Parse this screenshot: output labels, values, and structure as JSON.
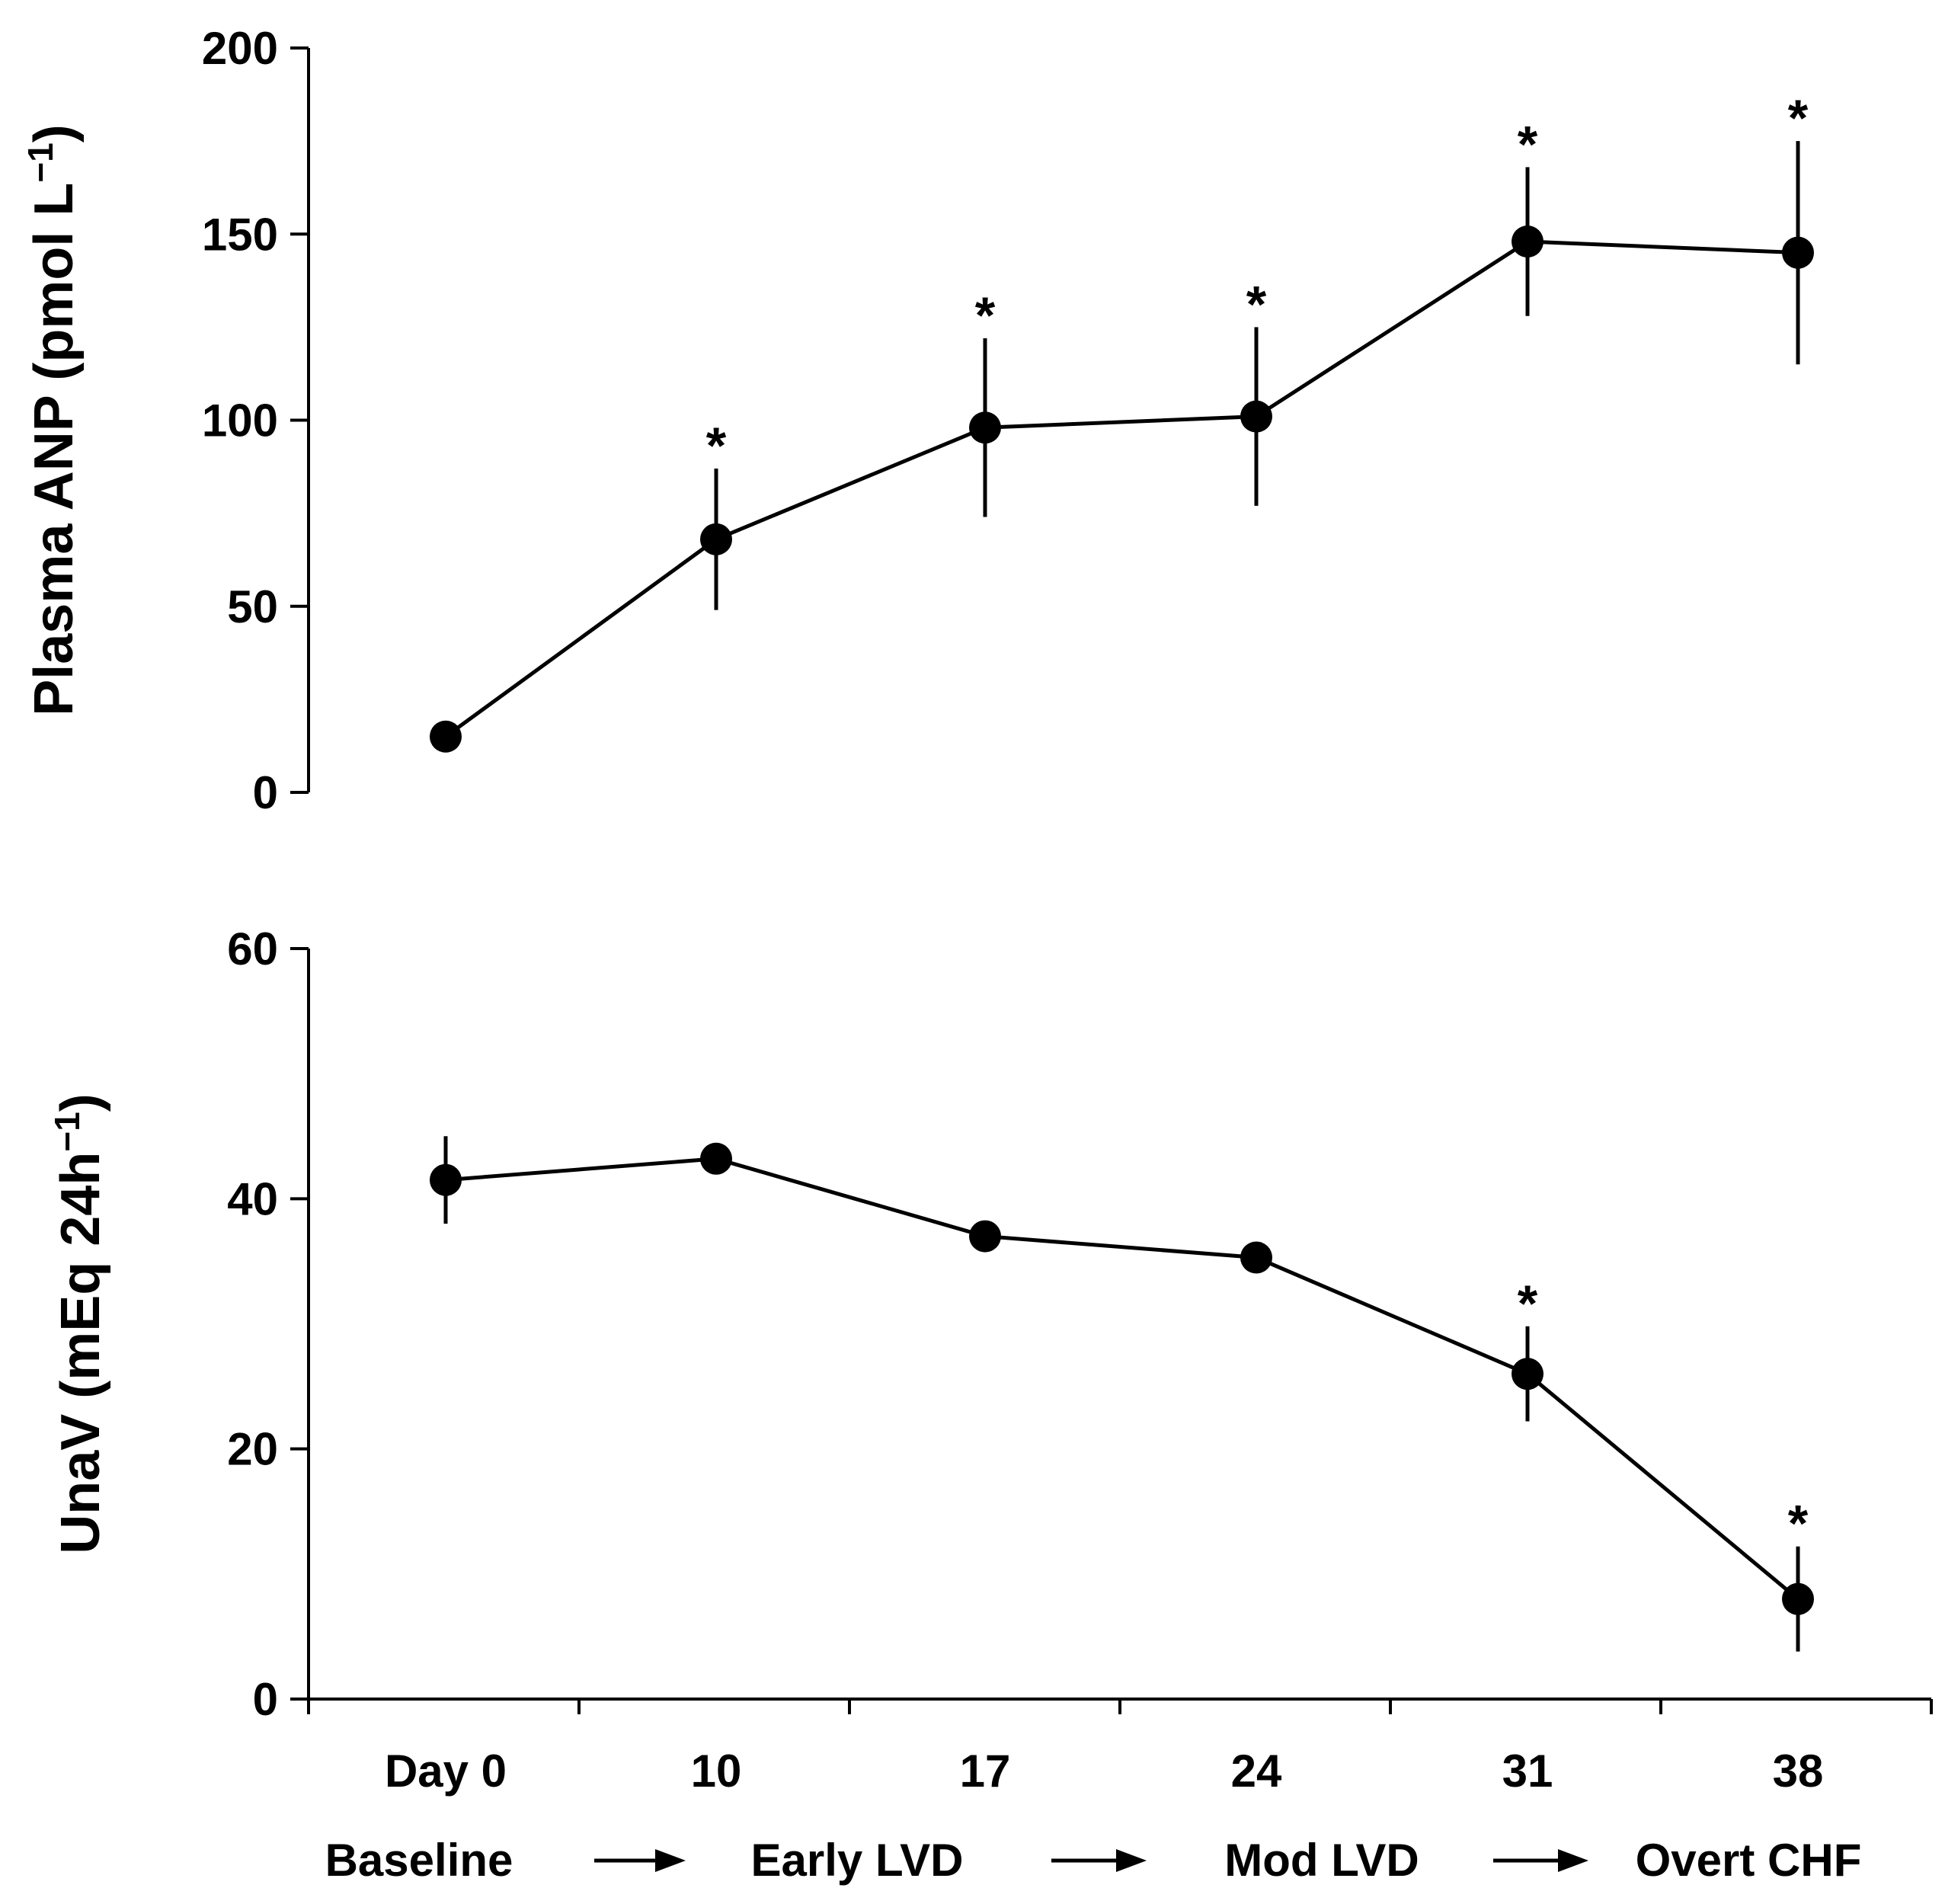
{
  "colors": {
    "ink": "#000000",
    "background": "#ffffff"
  },
  "x_axis": {
    "tick_labels": [
      "Day 0",
      "10",
      "17",
      "24",
      "31",
      "38"
    ],
    "stages": [
      {
        "label": "Baseline"
      },
      {
        "label": "Early LVD"
      },
      {
        "label": "Mod LVD"
      },
      {
        "label": "Overt CHF"
      }
    ]
  },
  "chart_data": [
    {
      "type": "line",
      "ylabel_main": "Plasma ANP (pmol L",
      "ylabel_sup": "−1",
      "ylabel_close": ")",
      "ylim": [
        0,
        200
      ],
      "yticks": [
        0,
        50,
        100,
        150,
        200
      ],
      "ytick_labels": [
        "0",
        "50",
        "100",
        "150",
        "200"
      ],
      "categories": [
        "Day 0",
        "10",
        "17",
        "24",
        "31",
        "38"
      ],
      "values": [
        15,
        68,
        98,
        101,
        148,
        145
      ],
      "error": [
        0,
        19,
        24,
        24,
        20,
        30
      ],
      "significant": [
        false,
        true,
        true,
        true,
        true,
        true
      ],
      "marker_label": "*"
    },
    {
      "type": "line",
      "ylabel_main": "UnaV (mEq 24h",
      "ylabel_sup": "−1",
      "ylabel_close": ")",
      "ylim": [
        0,
        60
      ],
      "yticks": [
        0,
        20,
        40,
        60
      ],
      "ytick_labels": [
        "0",
        "20",
        "40",
        "60"
      ],
      "categories": [
        "Day 0",
        "10",
        "17",
        "24",
        "31",
        "38"
      ],
      "values": [
        41.5,
        43.2,
        37,
        35.3,
        26,
        8
      ],
      "error": [
        3.5,
        1.2,
        0.6,
        1.2,
        3.8,
        4.2
      ],
      "significant": [
        false,
        false,
        false,
        false,
        true,
        true
      ],
      "marker_label": "*"
    }
  ]
}
